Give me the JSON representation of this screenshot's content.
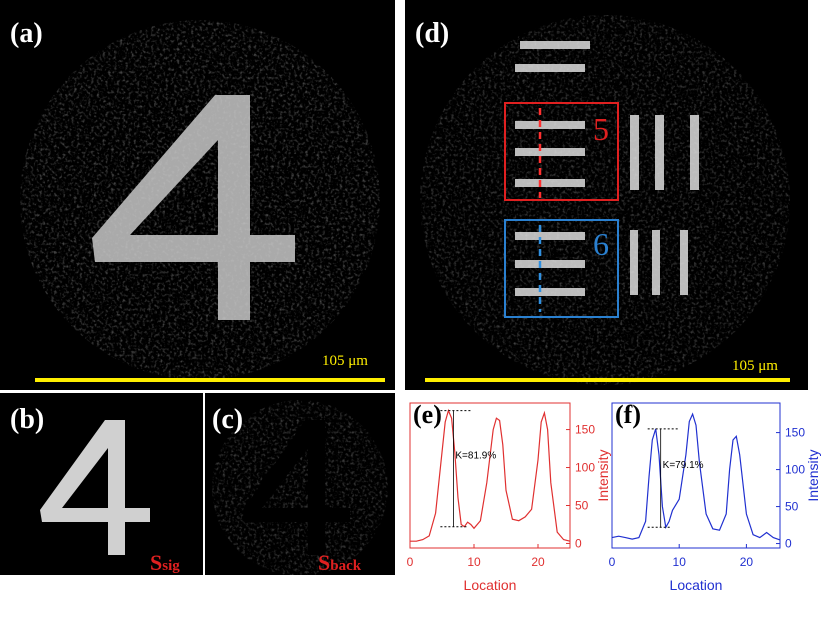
{
  "panels": {
    "a": {
      "label": "(a)",
      "scale_bar": "105 μm"
    },
    "b": {
      "label": "(b)",
      "signal": {
        "main": "S",
        "sub": "sig"
      }
    },
    "c": {
      "label": "(c)",
      "signal": {
        "main": "S",
        "sub": "back"
      }
    },
    "d": {
      "label": "(d)",
      "scale_bar": "105 μm",
      "box_labels": [
        "5",
        "6"
      ]
    }
  },
  "chart_data": [
    {
      "type": "line",
      "label": "(e)",
      "x_label": "Location",
      "y_label": "Intensity",
      "annotation": "K=81.9%",
      "color": "#e03030",
      "x": [
        0,
        1,
        2,
        3,
        4,
        5,
        5.5,
        6,
        6.5,
        7,
        7.5,
        8,
        8.5,
        9,
        9.5,
        10,
        11,
        12,
        13,
        13.5,
        14,
        14.5,
        15,
        16,
        17,
        18,
        19,
        20,
        20.5,
        21,
        21.5,
        22,
        23,
        24,
        25
      ],
      "values": [
        3,
        3,
        5,
        10,
        40,
        120,
        160,
        175,
        165,
        120,
        60,
        25,
        22,
        28,
        25,
        20,
        30,
        80,
        150,
        165,
        162,
        130,
        70,
        32,
        30,
        35,
        45,
        110,
        160,
        172,
        150,
        80,
        15,
        5,
        3
      ],
      "xlim": [
        0,
        25
      ],
      "ylim": [
        -6,
        185
      ],
      "xticks": [
        0,
        10,
        20
      ],
      "yticks": [
        0,
        50,
        100,
        150
      ]
    },
    {
      "type": "line",
      "label": "(f)",
      "x_label": "Location",
      "y_label": "Intensity",
      "annotation": "K=79.1%",
      "color": "#2030d0",
      "x": [
        0,
        1,
        2,
        3,
        4,
        5,
        5.5,
        6,
        6.5,
        7,
        7.5,
        8,
        8.5,
        9,
        10,
        11,
        11.5,
        12,
        12.5,
        13,
        14,
        15,
        16,
        17,
        17.5,
        18,
        18.5,
        19,
        20,
        21,
        22,
        23,
        24,
        25
      ],
      "values": [
        8,
        10,
        8,
        6,
        8,
        30,
        90,
        140,
        155,
        120,
        50,
        22,
        30,
        45,
        60,
        120,
        165,
        175,
        160,
        110,
        40,
        20,
        18,
        40,
        100,
        140,
        145,
        120,
        40,
        12,
        8,
        15,
        8,
        5
      ],
      "xlim": [
        0,
        25
      ],
      "ylim": [
        -6,
        190
      ],
      "xticks": [
        0,
        10,
        20
      ],
      "yticks": [
        0,
        50,
        100,
        150
      ]
    }
  ]
}
